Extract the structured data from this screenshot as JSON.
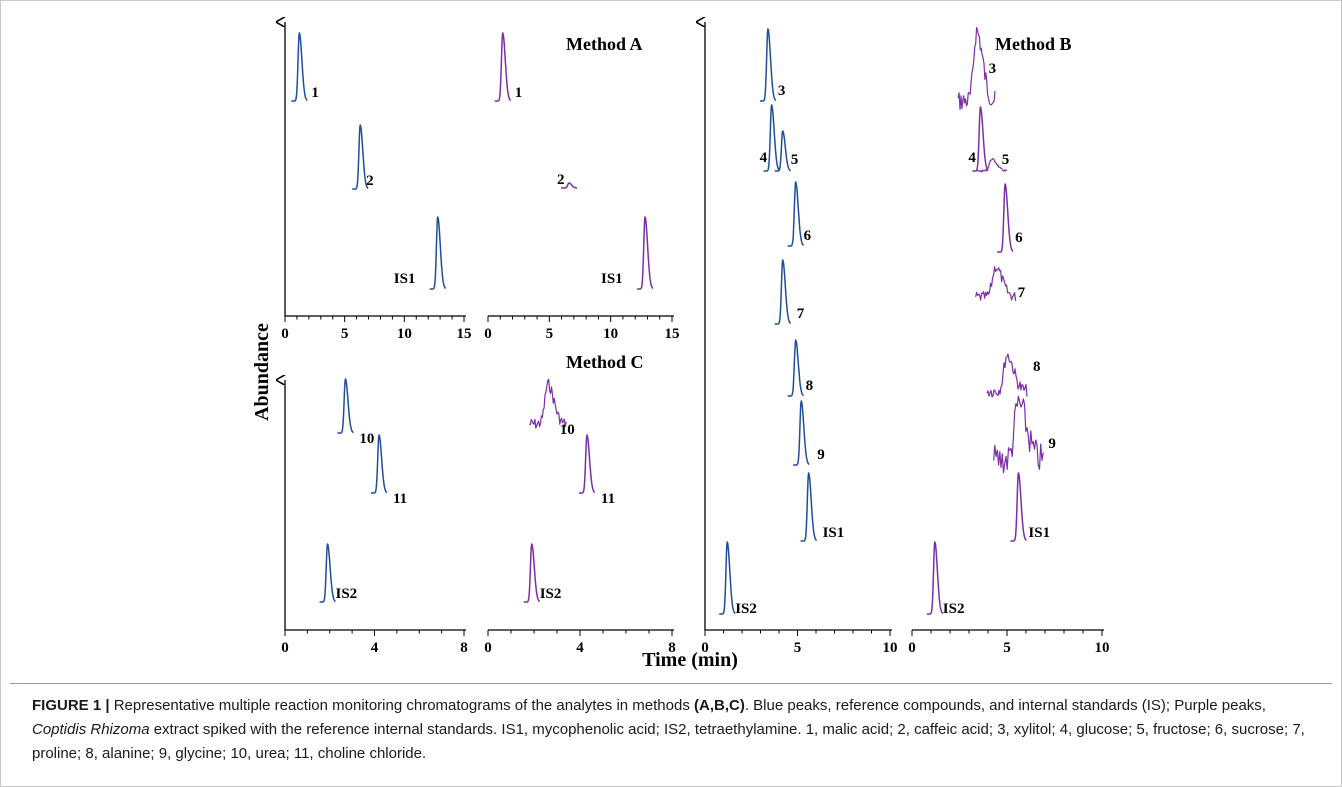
{
  "figure": {
    "caption": {
      "label": "FIGURE 1 |",
      "part1": " Representative multiple reaction monitoring chromatograms of the analytes in methods ",
      "methods_ref": "(A,B,C)",
      "part2": ". Blue peaks, reference compounds, and internal standards (IS); Purple peaks, ",
      "species": "Coptidis Rhizoma",
      "part3": " extract spiked with the reference internal standards. IS1, mycophenolic acid; IS2, tetraethylamine. 1, malic acid; 2, caffeic acid; 3, xylitol; 4, glucose; 5, fructose; 6, sucrose; 7, proline; 8, alanine; 9, glycine; 10, urea; 11, choline chloride."
    },
    "y_axis_title": "Abundance",
    "x_axis_title": "Time (min)",
    "colors": {
      "reference": "#1f4e9a",
      "sample": "#7b2fa5",
      "axis": "#000000"
    },
    "methods": [
      "Method A",
      "Method B",
      "Method C"
    ]
  },
  "chart_data": [
    {
      "type": "line",
      "method": "Method A",
      "series_kind": "reference (blue)",
      "xlim": [
        0,
        15
      ],
      "xticks": [
        "0",
        "5",
        "10",
        "15"
      ],
      "peaks": [
        {
          "label": "1",
          "rt": 1.2
        },
        {
          "label": "2",
          "rt": 6.3
        },
        {
          "label": "IS1",
          "rt": 12.8
        }
      ]
    },
    {
      "type": "line",
      "method": "Method A",
      "series_kind": "sample (purple)",
      "xlim": [
        0,
        15
      ],
      "xticks": [
        "0",
        "5",
        "10",
        "15"
      ],
      "peaks": [
        {
          "label": "1",
          "rt": 1.2
        },
        {
          "label": "2",
          "rt": 6.6
        },
        {
          "label": "IS1",
          "rt": 12.8
        }
      ]
    },
    {
      "type": "line",
      "method": "Method C",
      "series_kind": "reference (blue)",
      "xlim": [
        0,
        8
      ],
      "xticks": [
        "0",
        "4",
        "8"
      ],
      "peaks": [
        {
          "label": "10",
          "rt": 2.7
        },
        {
          "label": "11",
          "rt": 4.2
        },
        {
          "label": "IS2",
          "rt": 1.9
        }
      ]
    },
    {
      "type": "line",
      "method": "Method C",
      "series_kind": "sample (purple)",
      "xlim": [
        0,
        8
      ],
      "xticks": [
        "0",
        "4",
        "8"
      ],
      "peaks": [
        {
          "label": "10",
          "rt": 2.6
        },
        {
          "label": "11",
          "rt": 4.3
        },
        {
          "label": "IS2",
          "rt": 1.9
        }
      ]
    },
    {
      "type": "line",
      "method": "Method B",
      "series_kind": "reference (blue)",
      "xlim": [
        0,
        10
      ],
      "xticks": [
        "0",
        "5",
        "10"
      ],
      "peaks": [
        {
          "label": "3",
          "rt": 3.4
        },
        {
          "label": "4",
          "rt": 3.6
        },
        {
          "label": "5",
          "rt": 4.2
        },
        {
          "label": "6",
          "rt": 4.9
        },
        {
          "label": "7",
          "rt": 4.2
        },
        {
          "label": "8",
          "rt": 4.9
        },
        {
          "label": "9",
          "rt": 5.2
        },
        {
          "label": "IS1",
          "rt": 5.6
        },
        {
          "label": "IS2",
          "rt": 1.2
        }
      ]
    },
    {
      "type": "line",
      "method": "Method B",
      "series_kind": "sample (purple)",
      "xlim": [
        0,
        10
      ],
      "xticks": [
        "0",
        "5",
        "10"
      ],
      "peaks": [
        {
          "label": "3",
          "rt": 3.4
        },
        {
          "label": "4",
          "rt": 3.6
        },
        {
          "label": "5",
          "rt": 4.2
        },
        {
          "label": "6",
          "rt": 4.9
        },
        {
          "label": "7",
          "rt": 4.4
        },
        {
          "label": "8",
          "rt": 5.0
        },
        {
          "label": "9",
          "rt": 5.6
        },
        {
          "label": "IS1",
          "rt": 5.6
        },
        {
          "label": "IS2",
          "rt": 1.2
        }
      ]
    }
  ]
}
